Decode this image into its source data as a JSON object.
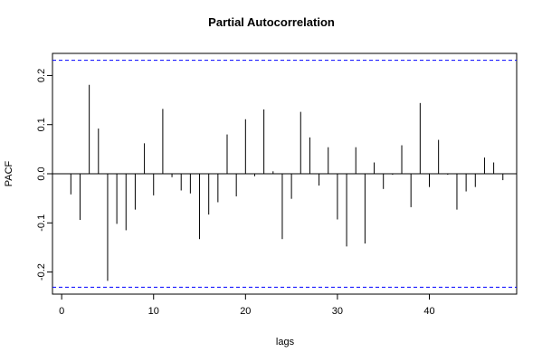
{
  "chart_data": {
    "type": "bar",
    "title": "Partial Autocorrelation",
    "xlabel": "lags",
    "ylabel": "PACF",
    "xlim": [
      -1,
      49.5
    ],
    "ylim": [
      -0.245,
      0.245
    ],
    "x_ticks": [
      0,
      10,
      20,
      30,
      40
    ],
    "x_tick_labels": [
      "0",
      "10",
      "20",
      "30",
      "40"
    ],
    "y_ticks": [
      -0.2,
      -0.1,
      0.0,
      0.1,
      0.2
    ],
    "y_tick_labels": [
      "-0.2",
      "-0.1",
      "0.0",
      "0.1",
      "0.2"
    ],
    "confidence_bound": 0.231,
    "confidence_line_color": "#0000ff",
    "bar_color": "#000000",
    "lags": [
      1,
      2,
      3,
      4,
      5,
      6,
      7,
      8,
      9,
      10,
      11,
      12,
      13,
      14,
      15,
      16,
      17,
      18,
      19,
      20,
      21,
      22,
      23,
      24,
      25,
      26,
      27,
      28,
      29,
      30,
      31,
      32,
      33,
      34,
      35,
      36,
      37,
      38,
      39,
      40,
      41,
      42,
      43,
      44,
      45,
      46,
      47,
      48
    ],
    "values": [
      -0.042,
      -0.094,
      0.181,
      0.092,
      -0.218,
      -0.102,
      -0.115,
      -0.073,
      0.062,
      -0.044,
      0.132,
      -0.007,
      -0.034,
      -0.04,
      -0.133,
      -0.083,
      -0.058,
      0.08,
      -0.046,
      0.111,
      -0.005,
      0.131,
      0.005,
      -0.133,
      -0.051,
      0.126,
      0.074,
      -0.024,
      0.054,
      -0.093,
      -0.148,
      0.054,
      -0.142,
      0.023,
      -0.031,
      -0.002,
      0.058,
      -0.068,
      0.144,
      -0.027,
      0.069,
      -0.002,
      -0.073,
      -0.036,
      -0.027,
      0.033,
      0.023,
      -0.013
    ]
  }
}
